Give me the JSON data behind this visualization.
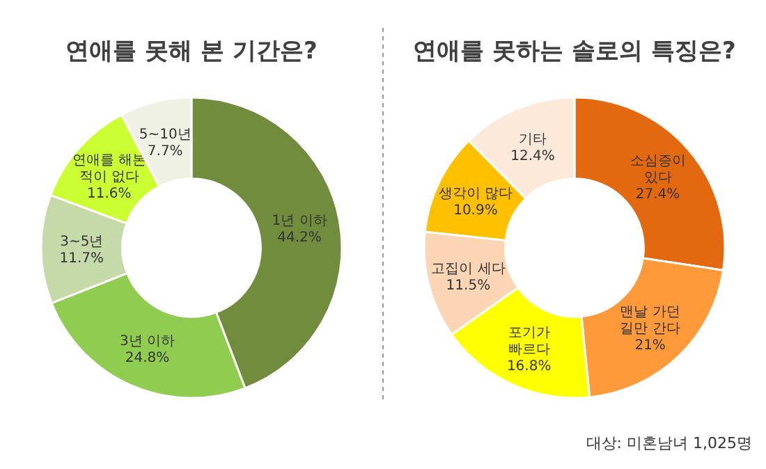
{
  "chart_data": [
    {
      "type": "donut",
      "title": "연애를 못해 본 기간은?",
      "categories": [
        "1년 이하",
        "3년 이하",
        "3~5년",
        "연애를 해본\n적이 없다",
        "5~10년"
      ],
      "values": [
        44.2,
        24.8,
        11.7,
        11.6,
        7.7
      ],
      "colors": [
        "#718c3c",
        "#8fcc4f",
        "#c6d9a9",
        "#ccff33",
        "#eef1e3"
      ],
      "value_labels": [
        "44.2%",
        "24.8%",
        "11.7%",
        "11.6%",
        "7.7%"
      ]
    },
    {
      "type": "donut",
      "title": "연애를 못하는 솔로의 특징은?",
      "categories": [
        "소심증이\n있다",
        "맨날 가던\n길만 간다",
        "포기가\n빠르다",
        "고집이 세다",
        "생각이 많다",
        "기타"
      ],
      "values": [
        27.4,
        21,
        16.8,
        11.5,
        10.9,
        12.4
      ],
      "colors": [
        "#e2690f",
        "#ff9a3a",
        "#ffff00",
        "#fcd5b4",
        "#ffc000",
        "#fde9d9"
      ],
      "value_labels": [
        "27.4%",
        "21%",
        "16.8%",
        "11.5%",
        "10.9%",
        "12.4%"
      ],
      "annotations": [
        "대상: 미혼남녀 1,025명"
      ]
    }
  ]
}
